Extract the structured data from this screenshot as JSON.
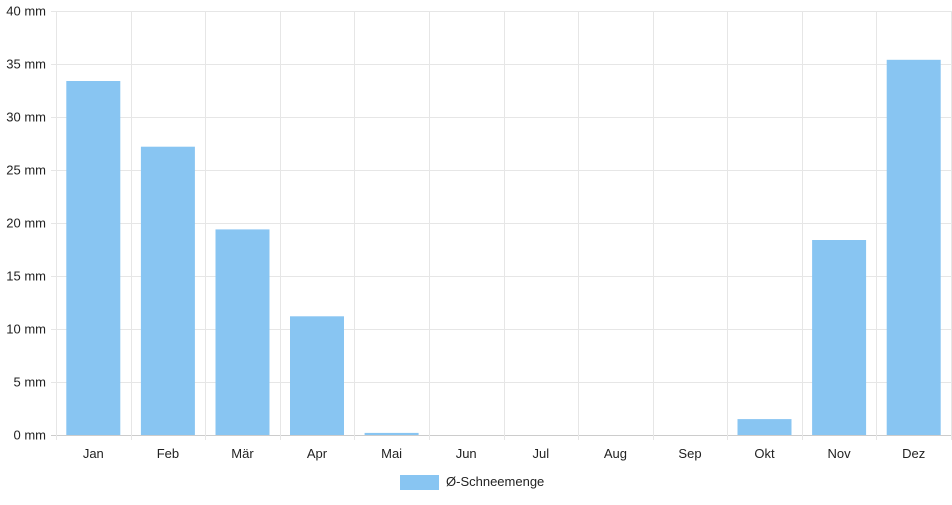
{
  "chart_data": {
    "type": "bar",
    "categories": [
      "Jan",
      "Feb",
      "Mär",
      "Apr",
      "Mai",
      "Jun",
      "Jul",
      "Aug",
      "Sep",
      "Okt",
      "Nov",
      "Dez"
    ],
    "series": [
      {
        "name": "Ø-Schneemenge",
        "values": [
          33.4,
          27.2,
          19.4,
          11.2,
          0.2,
          0,
          0,
          0,
          0,
          1.5,
          18.4,
          35.4
        ],
        "color": "#88c5f2"
      }
    ],
    "unit": "mm",
    "ylim": [
      0,
      40
    ],
    "yticks": [
      0,
      5,
      10,
      15,
      20,
      25,
      30,
      35,
      40
    ],
    "grid": true,
    "legend": "bottom"
  }
}
